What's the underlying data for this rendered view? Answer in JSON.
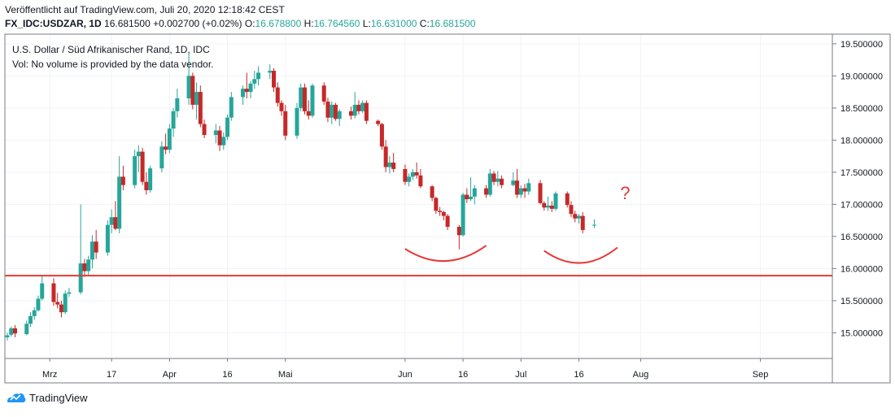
{
  "header": {
    "published": "Veröffentlicht auf TradingView.com, Juli 20, 2020 12:18:42 CEST",
    "symbol": "FX_IDC:USDZAR, 1D",
    "price": "16.681500",
    "change": "+0.002700 (+0.02%)",
    "o_label": "O:",
    "o_value": "16.678800",
    "h_label": "H:",
    "h_value": "16.764560",
    "l_label": "L:",
    "l_value": "16.631000",
    "c_label": "C:",
    "c_value": "16.681500"
  },
  "legend": {
    "title": "U.S. Dollar / Süd Afrikanischer Rand, 1D, IDC",
    "volume_note": "Vol: No volume is provided by the data vendor."
  },
  "footer": {
    "brand": "TradingView"
  },
  "annotation": {
    "question": "?"
  },
  "colors": {
    "up": "#26a69a",
    "down": "#c62828",
    "line": "#e53935",
    "grid": "#f0f3fa",
    "axis": "#787b86"
  },
  "chart_data": {
    "type": "candlestick",
    "title": "U.S. Dollar / Süd Afrikanischer Rand, 1D, IDC",
    "ylim": [
      14.6,
      19.65
    ],
    "y_ticks": [
      "19.500000",
      "19.000000",
      "18.500000",
      "18.000000",
      "17.500000",
      "17.000000",
      "16.500000",
      "16.000000",
      "15.500000",
      "15.000000"
    ],
    "x_ticks": [
      "Mrz",
      "17",
      "Apr",
      "16",
      "Mai",
      "Jun",
      "16",
      "Jul",
      "16",
      "Aug",
      "Sep"
    ],
    "x_tick_dates": [
      "2020-03-01",
      "2020-03-17",
      "2020-04-01",
      "2020-04-16",
      "2020-05-01",
      "2020-06-01",
      "2020-06-16",
      "2020-07-01",
      "2020-07-16",
      "2020-08-01",
      "2020-09-01"
    ],
    "x_range": [
      "2020-02-19",
      "2020-09-19"
    ],
    "horizontal_line": 15.89,
    "arcs": [
      {
        "from": "2020-06-01",
        "to": "2020-06-22",
        "low": 16.13
      },
      {
        "from": "2020-07-07",
        "to": "2020-07-26",
        "low": 16.1
      }
    ],
    "candles": [
      {
        "d": "2020-02-19",
        "o": 14.93,
        "h": 15.0,
        "l": 14.88,
        "c": 14.96
      },
      {
        "d": "2020-02-20",
        "o": 14.97,
        "h": 15.1,
        "l": 14.94,
        "c": 15.07
      },
      {
        "d": "2020-02-21",
        "o": 15.07,
        "h": 15.12,
        "l": 14.93,
        "c": 14.99
      },
      {
        "d": "2020-02-24",
        "o": 14.98,
        "h": 15.19,
        "l": 14.96,
        "c": 15.14
      },
      {
        "d": "2020-02-25",
        "o": 15.14,
        "h": 15.32,
        "l": 15.09,
        "c": 15.26
      },
      {
        "d": "2020-02-26",
        "o": 15.26,
        "h": 15.4,
        "l": 15.2,
        "c": 15.35
      },
      {
        "d": "2020-02-27",
        "o": 15.35,
        "h": 15.58,
        "l": 15.33,
        "c": 15.53
      },
      {
        "d": "2020-02-28",
        "o": 15.53,
        "h": 15.88,
        "l": 15.5,
        "c": 15.77
      },
      {
        "d": "2020-03-02",
        "o": 15.77,
        "h": 15.85,
        "l": 15.42,
        "c": 15.48
      },
      {
        "d": "2020-03-03",
        "o": 15.48,
        "h": 15.62,
        "l": 15.38,
        "c": 15.44
      },
      {
        "d": "2020-03-04",
        "o": 15.44,
        "h": 15.5,
        "l": 15.24,
        "c": 15.32
      },
      {
        "d": "2020-03-05",
        "o": 15.32,
        "h": 15.66,
        "l": 15.29,
        "c": 15.61
      },
      {
        "d": "2020-03-06",
        "o": 15.61,
        "h": 15.7,
        "l": 15.56,
        "c": 15.63
      },
      {
        "d": "2020-03-09",
        "o": 15.63,
        "h": 17.0,
        "l": 15.6,
        "c": 16.08
      },
      {
        "d": "2020-03-10",
        "o": 16.08,
        "h": 16.15,
        "l": 15.87,
        "c": 15.96
      },
      {
        "d": "2020-03-11",
        "o": 15.96,
        "h": 16.2,
        "l": 15.9,
        "c": 16.14
      },
      {
        "d": "2020-03-12",
        "o": 16.14,
        "h": 16.52,
        "l": 16.0,
        "c": 16.42
      },
      {
        "d": "2020-03-13",
        "o": 16.42,
        "h": 16.6,
        "l": 16.15,
        "c": 16.25
      },
      {
        "d": "2020-03-16",
        "o": 16.25,
        "h": 16.75,
        "l": 16.2,
        "c": 16.68
      },
      {
        "d": "2020-03-17",
        "o": 16.68,
        "h": 16.92,
        "l": 16.55,
        "c": 16.8
      },
      {
        "d": "2020-03-18",
        "o": 16.8,
        "h": 17.05,
        "l": 16.6,
        "c": 16.62
      },
      {
        "d": "2020-03-19",
        "o": 16.62,
        "h": 17.75,
        "l": 16.55,
        "c": 17.43
      },
      {
        "d": "2020-03-20",
        "o": 17.43,
        "h": 17.6,
        "l": 17.22,
        "c": 17.3
      },
      {
        "d": "2020-03-23",
        "o": 17.3,
        "h": 17.85,
        "l": 17.25,
        "c": 17.75
      },
      {
        "d": "2020-03-24",
        "o": 17.75,
        "h": 17.92,
        "l": 17.5,
        "c": 17.82
      },
      {
        "d": "2020-03-25",
        "o": 17.82,
        "h": 17.88,
        "l": 17.3,
        "c": 17.35
      },
      {
        "d": "2020-03-26",
        "o": 17.35,
        "h": 17.5,
        "l": 17.15,
        "c": 17.22
      },
      {
        "d": "2020-03-27",
        "o": 17.22,
        "h": 17.6,
        "l": 17.18,
        "c": 17.56
      },
      {
        "d": "2020-03-30",
        "o": 17.56,
        "h": 17.98,
        "l": 17.5,
        "c": 17.9
      },
      {
        "d": "2020-03-31",
        "o": 17.9,
        "h": 18.1,
        "l": 17.78,
        "c": 17.85
      },
      {
        "d": "2020-04-01",
        "o": 17.85,
        "h": 18.25,
        "l": 17.8,
        "c": 18.18
      },
      {
        "d": "2020-04-02",
        "o": 18.18,
        "h": 18.5,
        "l": 18.05,
        "c": 18.45
      },
      {
        "d": "2020-04-03",
        "o": 18.45,
        "h": 18.8,
        "l": 18.35,
        "c": 18.65
      },
      {
        "d": "2020-04-06",
        "o": 18.65,
        "h": 19.35,
        "l": 18.55,
        "c": 19.0
      },
      {
        "d": "2020-04-07",
        "o": 19.0,
        "h": 19.05,
        "l": 18.48,
        "c": 18.55
      },
      {
        "d": "2020-04-08",
        "o": 18.55,
        "h": 18.9,
        "l": 18.32,
        "c": 18.75
      },
      {
        "d": "2020-04-09",
        "o": 18.75,
        "h": 18.85,
        "l": 18.2,
        "c": 18.25
      },
      {
        "d": "2020-04-10",
        "o": 18.25,
        "h": 18.32,
        "l": 18.03,
        "c": 18.08
      },
      {
        "d": "2020-04-13",
        "o": 18.08,
        "h": 18.25,
        "l": 17.95,
        "c": 18.15
      },
      {
        "d": "2020-04-14",
        "o": 18.15,
        "h": 18.22,
        "l": 17.83,
        "c": 17.92
      },
      {
        "d": "2020-04-15",
        "o": 17.92,
        "h": 18.12,
        "l": 17.85,
        "c": 18.05
      },
      {
        "d": "2020-04-16",
        "o": 18.05,
        "h": 18.4,
        "l": 18.0,
        "c": 18.35
      },
      {
        "d": "2020-04-17",
        "o": 18.35,
        "h": 18.75,
        "l": 18.3,
        "c": 18.67
      },
      {
        "d": "2020-04-20",
        "o": 18.67,
        "h": 18.85,
        "l": 18.55,
        "c": 18.8
      },
      {
        "d": "2020-04-21",
        "o": 18.8,
        "h": 19.05,
        "l": 18.65,
        "c": 18.75
      },
      {
        "d": "2020-04-22",
        "o": 18.75,
        "h": 18.92,
        "l": 18.65,
        "c": 18.88
      },
      {
        "d": "2020-04-23",
        "o": 18.88,
        "h": 19.08,
        "l": 18.8,
        "c": 18.95
      },
      {
        "d": "2020-04-24",
        "o": 18.95,
        "h": 19.15,
        "l": 18.85,
        "c": 19.05
      },
      {
        "d": "2020-04-27",
        "o": 19.05,
        "h": 19.18,
        "l": 18.95,
        "c": 19.08
      },
      {
        "d": "2020-04-28",
        "o": 19.08,
        "h": 19.12,
        "l": 18.75,
        "c": 18.82
      },
      {
        "d": "2020-04-29",
        "o": 18.82,
        "h": 18.9,
        "l": 18.52,
        "c": 18.58
      },
      {
        "d": "2020-04-30",
        "o": 18.58,
        "h": 18.62,
        "l": 18.38,
        "c": 18.45
      },
      {
        "d": "2020-05-01",
        "o": 18.45,
        "h": 18.55,
        "l": 18.0,
        "c": 18.07
      },
      {
        "d": "2020-05-04",
        "o": 18.07,
        "h": 18.58,
        "l": 18.02,
        "c": 18.5
      },
      {
        "d": "2020-05-05",
        "o": 18.5,
        "h": 18.88,
        "l": 18.45,
        "c": 18.82
      },
      {
        "d": "2020-05-06",
        "o": 18.82,
        "h": 18.88,
        "l": 18.4,
        "c": 18.45
      },
      {
        "d": "2020-05-07",
        "o": 18.45,
        "h": 18.62,
        "l": 18.32,
        "c": 18.38
      },
      {
        "d": "2020-05-08",
        "o": 18.38,
        "h": 18.88,
        "l": 18.35,
        "c": 18.85
      },
      {
        "d": "2020-05-11",
        "o": 18.85,
        "h": 18.9,
        "l": 18.55,
        "c": 18.6
      },
      {
        "d": "2020-05-12",
        "o": 18.6,
        "h": 18.66,
        "l": 18.28,
        "c": 18.35
      },
      {
        "d": "2020-05-13",
        "o": 18.35,
        "h": 18.6,
        "l": 18.25,
        "c": 18.55
      },
      {
        "d": "2020-05-14",
        "o": 18.55,
        "h": 18.58,
        "l": 18.3,
        "c": 18.33
      },
      {
        "d": "2020-05-15",
        "o": 18.33,
        "h": 18.48,
        "l": 18.22,
        "c": 18.45
      },
      {
        "d": "2020-05-18",
        "o": 18.45,
        "h": 18.52,
        "l": 18.32,
        "c": 18.38
      },
      {
        "d": "2020-05-19",
        "o": 18.38,
        "h": 18.75,
        "l": 18.34,
        "c": 18.55
      },
      {
        "d": "2020-05-20",
        "o": 18.55,
        "h": 18.62,
        "l": 18.4,
        "c": 18.45
      },
      {
        "d": "2020-05-21",
        "o": 18.45,
        "h": 18.62,
        "l": 18.42,
        "c": 18.58
      },
      {
        "d": "2020-05-22",
        "o": 18.58,
        "h": 18.62,
        "l": 18.25,
        "c": 18.3
      },
      {
        "d": "2020-05-25",
        "o": 18.3,
        "h": 18.32,
        "l": 18.22,
        "c": 18.25
      },
      {
        "d": "2020-05-26",
        "o": 18.25,
        "h": 18.27,
        "l": 17.85,
        "c": 17.9
      },
      {
        "d": "2020-05-27",
        "o": 17.9,
        "h": 18.0,
        "l": 17.5,
        "c": 17.58
      },
      {
        "d": "2020-05-28",
        "o": 17.58,
        "h": 17.75,
        "l": 17.48,
        "c": 17.65
      },
      {
        "d": "2020-05-29",
        "o": 17.65,
        "h": 17.8,
        "l": 17.5,
        "c": 17.55
      },
      {
        "d": "2020-06-01",
        "o": 17.55,
        "h": 17.62,
        "l": 17.3,
        "c": 17.35
      },
      {
        "d": "2020-06-02",
        "o": 17.35,
        "h": 17.48,
        "l": 17.28,
        "c": 17.43
      },
      {
        "d": "2020-06-03",
        "o": 17.43,
        "h": 17.55,
        "l": 17.38,
        "c": 17.5
      },
      {
        "d": "2020-06-04",
        "o": 17.5,
        "h": 17.65,
        "l": 17.4,
        "c": 17.45
      },
      {
        "d": "2020-06-05",
        "o": 17.45,
        "h": 17.55,
        "l": 17.25,
        "c": 17.28
      },
      {
        "d": "2020-06-08",
        "o": 17.28,
        "h": 17.3,
        "l": 17.05,
        "c": 17.1
      },
      {
        "d": "2020-06-09",
        "o": 17.1,
        "h": 17.12,
        "l": 16.85,
        "c": 16.9
      },
      {
        "d": "2020-06-10",
        "o": 16.9,
        "h": 16.96,
        "l": 16.82,
        "c": 16.88
      },
      {
        "d": "2020-06-11",
        "o": 16.88,
        "h": 16.9,
        "l": 16.75,
        "c": 16.82
      },
      {
        "d": "2020-06-12",
        "o": 16.82,
        "h": 16.85,
        "l": 16.6,
        "c": 16.65
      },
      {
        "d": "2020-06-15",
        "o": 16.65,
        "h": 16.68,
        "l": 16.3,
        "c": 16.52
      },
      {
        "d": "2020-06-16",
        "o": 16.52,
        "h": 17.18,
        "l": 16.5,
        "c": 17.15
      },
      {
        "d": "2020-06-17",
        "o": 17.15,
        "h": 17.25,
        "l": 17.02,
        "c": 17.08
      },
      {
        "d": "2020-06-18",
        "o": 17.08,
        "h": 17.42,
        "l": 17.05,
        "c": 17.12
      },
      {
        "d": "2020-06-19",
        "o": 17.12,
        "h": 17.3,
        "l": 17.0,
        "c": 17.25
      },
      {
        "d": "2020-06-22",
        "o": 17.25,
        "h": 17.3,
        "l": 17.1,
        "c": 17.15
      },
      {
        "d": "2020-06-23",
        "o": 17.15,
        "h": 17.55,
        "l": 17.12,
        "c": 17.48
      },
      {
        "d": "2020-06-24",
        "o": 17.48,
        "h": 17.52,
        "l": 17.3,
        "c": 17.35
      },
      {
        "d": "2020-06-25",
        "o": 17.35,
        "h": 17.52,
        "l": 17.28,
        "c": 17.4
      },
      {
        "d": "2020-06-26",
        "o": 17.4,
        "h": 17.45,
        "l": 17.25,
        "c": 17.3
      },
      {
        "d": "2020-06-29",
        "o": 17.3,
        "h": 17.5,
        "l": 17.28,
        "c": 17.37
      },
      {
        "d": "2020-06-30",
        "o": 17.37,
        "h": 17.55,
        "l": 17.1,
        "c": 17.15
      },
      {
        "d": "2020-07-01",
        "o": 17.15,
        "h": 17.3,
        "l": 17.1,
        "c": 17.25
      },
      {
        "d": "2020-07-02",
        "o": 17.25,
        "h": 17.32,
        "l": 17.1,
        "c": 17.2
      },
      {
        "d": "2020-07-03",
        "o": 17.2,
        "h": 17.4,
        "l": 17.15,
        "c": 17.33
      },
      {
        "d": "2020-07-06",
        "o": 17.33,
        "h": 17.38,
        "l": 17.0,
        "c": 17.02
      },
      {
        "d": "2020-07-07",
        "o": 17.02,
        "h": 17.05,
        "l": 16.9,
        "c": 16.95
      },
      {
        "d": "2020-07-08",
        "o": 16.95,
        "h": 17.12,
        "l": 16.9,
        "c": 16.98
      },
      {
        "d": "2020-07-09",
        "o": 16.98,
        "h": 17.05,
        "l": 16.88,
        "c": 16.93
      },
      {
        "d": "2020-07-10",
        "o": 16.93,
        "h": 17.2,
        "l": 16.9,
        "c": 17.17
      },
      {
        "d": "2020-07-13",
        "o": 17.17,
        "h": 17.2,
        "l": 16.95,
        "c": 16.99
      },
      {
        "d": "2020-07-14",
        "o": 16.99,
        "h": 17.05,
        "l": 16.8,
        "c": 16.85
      },
      {
        "d": "2020-07-15",
        "o": 16.85,
        "h": 16.9,
        "l": 16.72,
        "c": 16.78
      },
      {
        "d": "2020-07-16",
        "o": 16.78,
        "h": 16.85,
        "l": 16.7,
        "c": 16.82
      },
      {
        "d": "2020-07-17",
        "o": 16.82,
        "h": 16.88,
        "l": 16.55,
        "c": 16.6
      },
      {
        "d": "2020-07-20",
        "o": 16.6788,
        "h": 16.76456,
        "l": 16.631,
        "c": 16.6815
      }
    ]
  }
}
